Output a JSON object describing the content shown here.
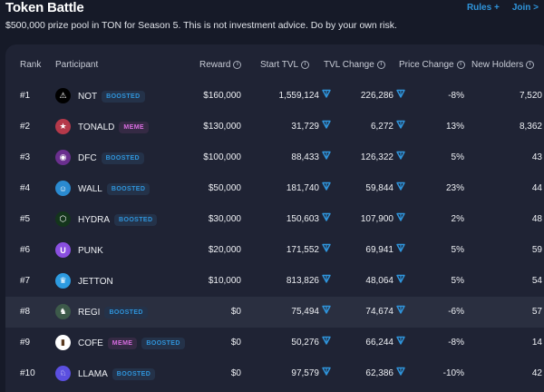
{
  "header": {
    "title": "Token Battle",
    "rules_label": "Rules +",
    "join_label": "Join >",
    "subtitle": "$500,000 prize pool in TON for Season 5. This is not investment advice. Do by your own risk."
  },
  "table": {
    "columns": {
      "rank": "Rank",
      "participant": "Participant",
      "reward": "Reward",
      "start_tvl": "Start TVL",
      "tvl_change": "TVL Change",
      "price_change": "Price Change",
      "new_holders": "New Holders"
    },
    "rows": [
      {
        "rank": "#1",
        "name": "NOT",
        "badges": [
          "BOOSTED"
        ],
        "reward": "$160,000",
        "start_tvl": "1,559,124",
        "tvl_change": "226,286",
        "price_change": "-8%",
        "new_holders": "7,520",
        "icon": "not-logo",
        "icon_bg": "#000000",
        "icon_glyph": "⚠"
      },
      {
        "rank": "#2",
        "name": "TONALD",
        "badges": [
          "MEME"
        ],
        "reward": "$130,000",
        "start_tvl": "31,729",
        "tvl_change": "6,272",
        "price_change": "13%",
        "new_holders": "8,362",
        "icon": "tonald-logo",
        "icon_bg": "#b5394a",
        "icon_glyph": "★"
      },
      {
        "rank": "#3",
        "name": "DFC",
        "badges": [
          "BOOSTED"
        ],
        "reward": "$100,000",
        "start_tvl": "88,433",
        "tvl_change": "126,322",
        "price_change": "5%",
        "new_holders": "43",
        "icon": "dfc-logo",
        "icon_bg": "#6a2f8e",
        "icon_glyph": "◉"
      },
      {
        "rank": "#4",
        "name": "WALL",
        "badges": [
          "BOOSTED"
        ],
        "reward": "$50,000",
        "start_tvl": "181,740",
        "tvl_change": "59,844",
        "price_change": "23%",
        "new_holders": "44",
        "icon": "wall-logo",
        "icon_bg": "#2a8ad0",
        "icon_glyph": "☺"
      },
      {
        "rank": "#5",
        "name": "HYDRA",
        "badges": [
          "BOOSTED"
        ],
        "reward": "$30,000",
        "start_tvl": "150,603",
        "tvl_change": "107,900",
        "price_change": "2%",
        "new_holders": "48",
        "icon": "hydra-logo",
        "icon_bg": "#14351c",
        "icon_glyph": "⬡"
      },
      {
        "rank": "#6",
        "name": "PUNK",
        "badges": [],
        "reward": "$20,000",
        "start_tvl": "171,552",
        "tvl_change": "69,941",
        "price_change": "5%",
        "new_holders": "59",
        "icon": "punk-logo",
        "icon_bg": "#8a4fe0",
        "icon_glyph": "U"
      },
      {
        "rank": "#7",
        "name": "JETTON",
        "badges": [],
        "reward": "$10,000",
        "start_tvl": "813,826",
        "tvl_change": "48,064",
        "price_change": "5%",
        "new_holders": "54",
        "icon": "jetton-logo",
        "icon_bg": "#2d9be0",
        "icon_glyph": "♛"
      },
      {
        "rank": "#8",
        "name": "REGI",
        "badges": [
          "BOOSTED"
        ],
        "reward": "$0",
        "start_tvl": "75,494",
        "tvl_change": "74,674",
        "price_change": "-6%",
        "new_holders": "57",
        "icon": "regi-logo",
        "icon_bg": "#3d5a4a",
        "icon_glyph": "♞",
        "highlighted": true
      },
      {
        "rank": "#9",
        "name": "COFE",
        "badges": [
          "MEME",
          "BOOSTED"
        ],
        "reward": "$0",
        "start_tvl": "50,276",
        "tvl_change": "66,244",
        "price_change": "-8%",
        "new_holders": "14",
        "icon": "cofe-logo",
        "icon_bg": "#ffffff",
        "icon_glyph": "▮"
      },
      {
        "rank": "#10",
        "name": "LLAMA",
        "badges": [
          "BOOSTED"
        ],
        "reward": "$0",
        "start_tvl": "97,579",
        "tvl_change": "62,386",
        "price_change": "-10%",
        "new_holders": "42",
        "icon": "llama-logo",
        "icon_bg": "#5b4fe0",
        "icon_glyph": "♘"
      }
    ]
  },
  "colors": {
    "accent": "#2f95dc",
    "meme": "#d86de0",
    "background": "#161a28",
    "card": "#1f2334",
    "row_highlight": "#2a2f40"
  }
}
